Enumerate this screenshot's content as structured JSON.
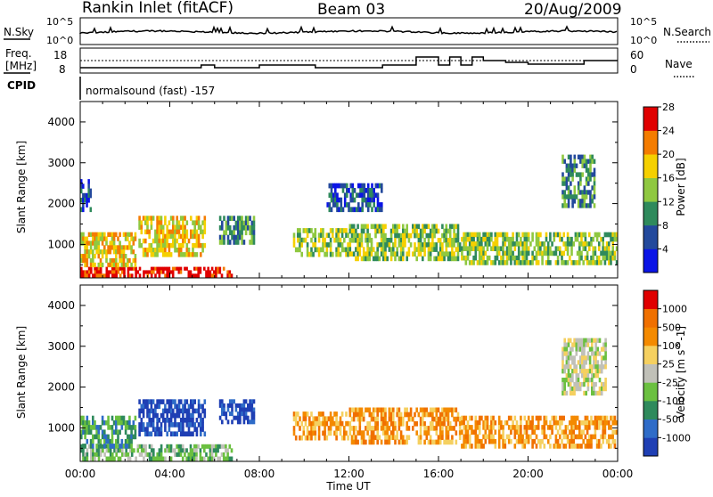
{
  "header": {
    "station": "Rankin Inlet (fitACF)",
    "beam": "Beam 03",
    "date": "20/Aug/2009"
  },
  "noise_panel": {
    "left_label": "N.Sky",
    "right_label": "N.Search",
    "left_ticks": [
      "10^5",
      "10^0"
    ],
    "right_ticks": [
      "10^5",
      "10^0"
    ]
  },
  "freq_panel": {
    "left_label_1": "Freq.",
    "left_label_2": "[MHz]",
    "right_label": "Nave",
    "left_ticks": [
      "18",
      "8"
    ],
    "right_ticks": [
      "60",
      "0"
    ]
  },
  "cpid_panel": {
    "label": "CPID",
    "program": "normalsound (fast) -157"
  },
  "colors": {
    "velocity_positive": "#1f3fb4",
    "velocity_negative": "#e60000",
    "ground_scatter": "#c0c0b8"
  },
  "chart_data": [
    {
      "type": "heatmap",
      "title": "",
      "xlabel": "Time UT",
      "ylabel": "Slant Range [km]",
      "x_ticks": [
        "00:00",
        "04:00",
        "08:00",
        "12:00",
        "16:00",
        "20:00",
        "00:00"
      ],
      "xlim_hours": [
        0,
        24
      ],
      "y_ticks": [
        1000,
        2000,
        3000,
        4000
      ],
      "ylim": [
        180,
        4500
      ],
      "colorbar_label": "Power [dB]",
      "colorbar_ticks": [
        "4",
        "8",
        "12",
        "16",
        "20",
        "24",
        "28"
      ],
      "colorbar_colors": [
        "#0a14e6",
        "#23499c",
        "#2f8a5c",
        "#8fc840",
        "#f5d000",
        "#f47c00",
        "#e00000"
      ],
      "scatter_regions": [
        {
          "t0": 0.0,
          "t1": 6.8,
          "r0": 200,
          "r1": 450,
          "level": 6
        },
        {
          "t0": 0.0,
          "t1": 2.5,
          "r0": 450,
          "r1": 1300,
          "level": 4
        },
        {
          "t0": 2.6,
          "t1": 5.6,
          "r0": 700,
          "r1": 1700,
          "level": 4
        },
        {
          "t0": 6.2,
          "t1": 7.8,
          "r0": 1000,
          "r1": 1700,
          "level": 2
        },
        {
          "t0": 9.5,
          "t1": 12.0,
          "r0": 700,
          "r1": 1400,
          "level": 3
        },
        {
          "t0": 12.0,
          "t1": 17.0,
          "r0": 600,
          "r1": 1500,
          "level": 3
        },
        {
          "t0": 17.0,
          "t1": 24.0,
          "r0": 500,
          "r1": 1300,
          "level": 3
        },
        {
          "t0": 11.0,
          "t1": 13.5,
          "r0": 1800,
          "r1": 2500,
          "level": 1
        },
        {
          "t0": 21.5,
          "t1": 23.0,
          "r0": 1900,
          "r1": 3200,
          "level": 2
        },
        {
          "t0": 0.0,
          "t1": 0.5,
          "r0": 1800,
          "r1": 2600,
          "level": 1
        }
      ]
    },
    {
      "type": "heatmap",
      "title": "",
      "xlabel": "Time UT",
      "ylabel": "Slant Range [km]",
      "x_ticks": [
        "00:00",
        "04:00",
        "08:00",
        "12:00",
        "16:00",
        "20:00",
        "00:00"
      ],
      "xlim_hours": [
        0,
        24
      ],
      "y_ticks": [
        1000,
        2000,
        3000,
        4000
      ],
      "ylim": [
        180,
        4500
      ],
      "colorbar_label": "Velocity [m s^-1]",
      "colorbar_ticks": [
        "1000",
        "500",
        "100",
        "25",
        "-25",
        "-100",
        "-500",
        "-1000"
      ],
      "colorbar_colors": [
        "#1f3fb4",
        "#2f6cc8",
        "#2f8a5c",
        "#6bc040",
        "#c0c0b8",
        "#f5d060",
        "#f48a00",
        "#f07000",
        "#e00000"
      ],
      "scatter_regions": [
        {
          "t0": 0.0,
          "t1": 6.8,
          "r0": 200,
          "r1": 600,
          "level": 3
        },
        {
          "t0": 2.6,
          "t1": 5.6,
          "r0": 800,
          "r1": 1700,
          "level": 0
        },
        {
          "t0": 6.2,
          "t1": 7.8,
          "r0": 1100,
          "r1": 1700,
          "level": 0
        },
        {
          "t0": 9.5,
          "t1": 12.0,
          "r0": 700,
          "r1": 1400,
          "level": 6
        },
        {
          "t0": 12.0,
          "t1": 17.0,
          "r0": 600,
          "r1": 1500,
          "level": 6
        },
        {
          "t0": 17.0,
          "t1": 24.0,
          "r0": 500,
          "r1": 1300,
          "level": 6
        },
        {
          "t0": 21.5,
          "t1": 23.5,
          "r0": 1800,
          "r1": 3200,
          "level": 4
        },
        {
          "t0": 0.0,
          "t1": 2.5,
          "r0": 500,
          "r1": 1300,
          "level": 2
        }
      ]
    }
  ]
}
